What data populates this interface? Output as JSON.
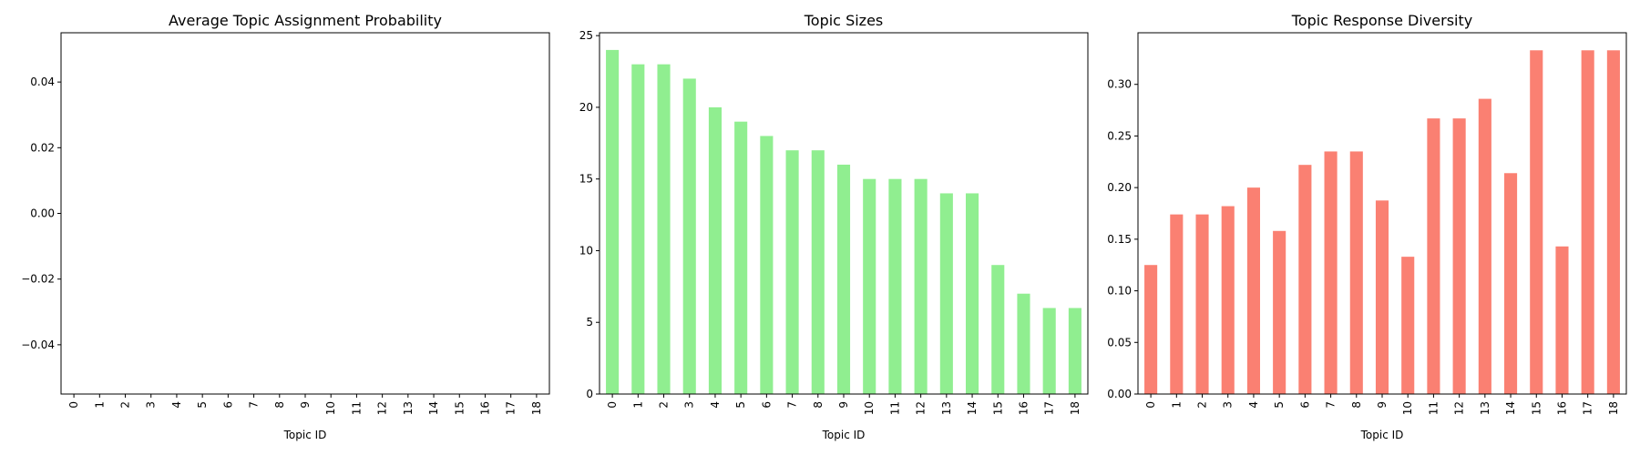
{
  "chart_data": [
    {
      "type": "bar",
      "title": "Average Topic Assignment Probability",
      "x_label": "Topic ID",
      "categories": [
        "0",
        "1",
        "2",
        "3",
        "4",
        "5",
        "6",
        "7",
        "8",
        "9",
        "10",
        "11",
        "12",
        "13",
        "14",
        "15",
        "16",
        "17",
        "18"
      ],
      "values": [
        null,
        null,
        null,
        null,
        null,
        null,
        null,
        null,
        null,
        null,
        null,
        null,
        null,
        null,
        null,
        null,
        null,
        null,
        null
      ],
      "color": "#1f77b4",
      "ylim": [
        -0.055,
        0.055
      ],
      "yticks": [
        {
          "value": -0.04,
          "label": "−0.04"
        },
        {
          "value": -0.02,
          "label": "−0.02"
        },
        {
          "value": 0,
          "label": "0.00"
        },
        0.02,
        0.04
      ]
    },
    {
      "type": "bar",
      "title": "Topic Sizes",
      "x_label": "Topic ID",
      "categories": [
        "0",
        "1",
        "2",
        "3",
        "4",
        "5",
        "6",
        "7",
        "8",
        "9",
        "10",
        "11",
        "12",
        "13",
        "14",
        "15",
        "16",
        "17",
        "18"
      ],
      "values": [
        24,
        23,
        23,
        22,
        20,
        19,
        18,
        17,
        17,
        16,
        15,
        15,
        15,
        14,
        14,
        9,
        7,
        6,
        6
      ],
      "color": "#90ee90",
      "ylim": [
        0,
        25.2
      ],
      "yticks": [
        0,
        5,
        10,
        15,
        20,
        25
      ]
    },
    {
      "type": "bar",
      "title": "Topic Response Diversity",
      "x_label": "Topic ID",
      "categories": [
        "0",
        "1",
        "2",
        "3",
        "4",
        "5",
        "6",
        "7",
        "8",
        "9",
        "10",
        "11",
        "12",
        "13",
        "14",
        "15",
        "16",
        "17",
        "18"
      ],
      "values": [
        0.125,
        0.174,
        0.174,
        0.182,
        0.2,
        0.158,
        0.222,
        0.235,
        0.235,
        0.1875,
        0.133,
        0.267,
        0.267,
        0.286,
        0.214,
        0.333,
        0.143,
        0.333,
        0.333
      ],
      "color": "#fa8072",
      "ylim": [
        0,
        0.35
      ],
      "yticks": [
        {
          "value": 0,
          "label": "0.00"
        },
        0.05,
        {
          "value": 0.1,
          "label": "0.10"
        },
        0.15,
        {
          "value": 0.2,
          "label": "0.20"
        },
        0.25,
        {
          "value": 0.3,
          "label": "0.30"
        }
      ]
    }
  ]
}
